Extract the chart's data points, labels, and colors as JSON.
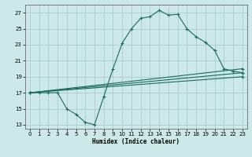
{
  "xlabel": "Humidex (Indice chaleur)",
  "background_color": "#cce8e8",
  "grid_color": "#aacccc",
  "line_color": "#1a6b60",
  "xlim": [
    -0.5,
    23.5
  ],
  "ylim": [
    12.5,
    28
  ],
  "yticks": [
    13,
    15,
    17,
    19,
    21,
    23,
    25,
    27
  ],
  "xticks": [
    0,
    1,
    2,
    3,
    4,
    5,
    6,
    7,
    8,
    9,
    10,
    11,
    12,
    13,
    14,
    15,
    16,
    17,
    18,
    19,
    20,
    21,
    22,
    23
  ],
  "line1_x": [
    0,
    1,
    2,
    3,
    4,
    5,
    6,
    7,
    8,
    9,
    10,
    11,
    12,
    13,
    14,
    15,
    16,
    17,
    18,
    19,
    20,
    21,
    22,
    23
  ],
  "line1_y": [
    17.0,
    17.0,
    17.0,
    17.0,
    15.0,
    14.3,
    13.3,
    13.0,
    16.5,
    20.0,
    23.2,
    25.0,
    26.3,
    26.5,
    27.3,
    26.7,
    26.8,
    25.0,
    24.0,
    23.3,
    22.3,
    20.0,
    19.7,
    19.5
  ],
  "line2_x": [
    0,
    23
  ],
  "line2_y": [
    17.0,
    20.0
  ],
  "line3_x": [
    0,
    23
  ],
  "line3_y": [
    17.0,
    19.5
  ],
  "line4_x": [
    0,
    23
  ],
  "line4_y": [
    17.0,
    19.0
  ]
}
